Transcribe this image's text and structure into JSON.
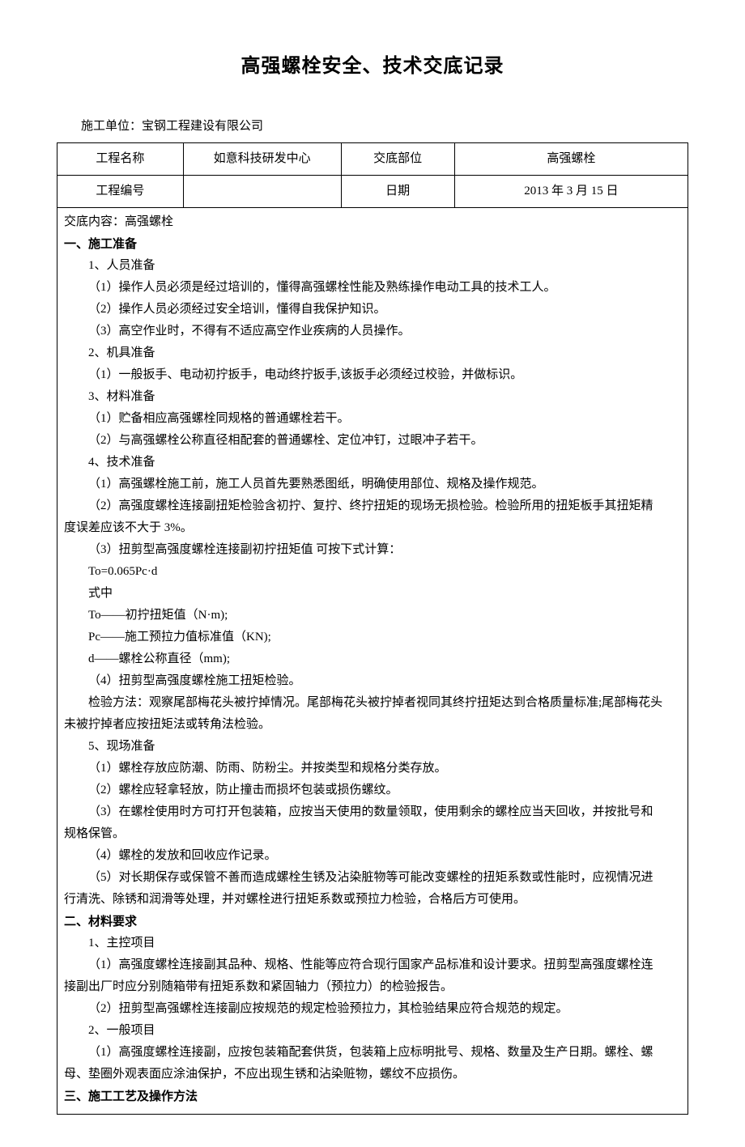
{
  "title": "高强螺栓安全、技术交底记录",
  "company_label": "施工单位：",
  "company_value": "宝钢工程建设有限公司",
  "header": {
    "row1": {
      "c1": "工程名称",
      "c2": "如意科技研发中心",
      "c3": "交底部位",
      "c4": "高强螺栓"
    },
    "row2": {
      "c1": "工程编号",
      "c2": "",
      "c3": "日期",
      "c4": "2013 年 3 月 15 日"
    }
  },
  "content": {
    "header_line": "交底内容：高强螺栓",
    "sec1_title": "一、施工准备",
    "s1_1": "1、人员准备",
    "s1_1_1": "（1）操作人员必须是经过培训的，懂得高强螺栓性能及熟练操作电动工具的技术工人。",
    "s1_1_2": "（2）操作人员必须经过安全培训，懂得自我保护知识。",
    "s1_1_3": "（3）高空作业时，不得有不适应高空作业疾病的人员操作。",
    "s1_2": "2、机具准备",
    "s1_2_1": "（1）一般扳手、电动初拧扳手，电动终拧扳手,该扳手必须经过校验，并做标识。",
    "s1_3": "3、材料准备",
    "s1_3_1": "（1）贮备相应高强螺栓同规格的普通螺栓若干。",
    "s1_3_2": "（2）与高强螺栓公称直径相配套的普通螺栓、定位冲钉，过眼冲子若干。",
    "s1_4": "4、技术准备",
    "s1_4_1": "（1）高强螺栓施工前，施工人员首先要熟悉图纸，明确使用部位、规格及操作规范。",
    "s1_4_2a": "（2）高强度螺栓连接副扭矩检验含初拧、复拧、终拧扭矩的现场无损检验。检验所用的扭矩板手其扭矩精",
    "s1_4_2b": "度误差应该不大于 3%。",
    "s1_4_3": "（3）扭剪型高强度螺栓连接副初拧扭矩值  可按下式计算：",
    "formula": "To=0.065Pc·d",
    "formula_label": "式中",
    "formula_to": "To——初拧扭矩值（N·m);",
    "formula_pc": "Pc——施工预拉力值标准值（KN);",
    "formula_d": "d――螺栓公称直径（mm);",
    "s1_4_4": "（4）扭剪型高强度螺栓施工扭矩检验。",
    "s1_4_4_desc_a": "检验方法：观察尾部梅花头被拧掉情况。尾部梅花头被拧掉者视同其终拧扭矩达到合格质量标准;尾部梅花头",
    "s1_4_4_desc_b": "未被拧掉者应按扭矩法或转角法检验。",
    "s1_5": "5、现场准备",
    "s1_5_1": "（1）螺栓存放应防潮、防雨、防粉尘。并按类型和规格分类存放。",
    "s1_5_2": "（2）螺栓应轻拿轻放，防止撞击而损坏包装或损伤螺纹。",
    "s1_5_3a": "（3）在螺栓使用时方可打开包装箱，应按当天使用的数量领取，使用剩余的螺栓应当天回收，并按批号和",
    "s1_5_3b": "规格保管。",
    "s1_5_4": "（4）螺栓的发放和回收应作记录。",
    "s1_5_5a": "（5）对长期保存或保管不善而造成螺栓生锈及沾染脏物等可能改变螺栓的扭矩系数或性能时，应视情况进",
    "s1_5_5b": "行清洗、除锈和润滑等处理，并对螺栓进行扭矩系数或预拉力检验，合格后方可使用。",
    "sec2_title": "二、材料要求",
    "s2_1": "1、主控项目",
    "s2_1_1a": "（1）高强度螺栓连接副其品种、规格、性能等应符合现行国家产品标准和设计要求。扭剪型高强度螺栓连",
    "s2_1_1b": "接副出厂时应分别随箱带有扭矩系数和紧固轴力（预拉力）的检验报告。",
    "s2_1_2": "（2）扭剪型高强螺栓连接副应按规范的规定检验预拉力，其检验结果应符合规范的规定。",
    "s2_2": "2、一般项目",
    "s2_2_1a": "（1）高强度螺栓连接副，应按包装箱配套供货，包装箱上应标明批号、规格、数量及生产日期。螺栓、螺",
    "s2_2_1b": "母、垫圈外观表面应涂油保护，不应出现生锈和沾染赃物，螺纹不应损伤。",
    "sec3_title": "三、施工工艺及操作方法"
  }
}
